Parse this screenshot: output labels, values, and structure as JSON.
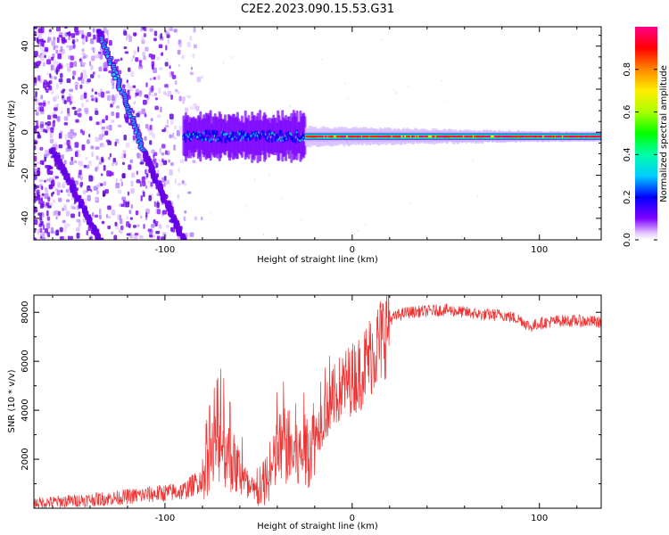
{
  "title": "C2E2.2023.090.15.53.G31",
  "chart_data": [
    {
      "type": "heatmap",
      "xlabel": "Height of straight line (km)",
      "ylabel": "Frequency (Hz)",
      "xlim": [
        -170,
        133
      ],
      "ylim": [
        -50,
        49
      ],
      "xticks": [
        -100,
        0,
        100
      ],
      "yticks": [
        -40,
        -20,
        0,
        20,
        40
      ],
      "colorbar": {
        "label": "Normalized spectral amplitude",
        "range": [
          0,
          1
        ],
        "ticks": [
          0.0,
          0.2,
          0.4,
          0.6,
          0.8
        ]
      },
      "features": [
        {
          "name": "descending-line-1",
          "from": [
            -135,
            47
          ],
          "to": [
            -110,
            -12
          ]
        },
        {
          "name": "descending-line-2",
          "from": [
            -110,
            -12
          ],
          "to": [
            -90,
            -50
          ]
        },
        {
          "name": "descending-line-3",
          "from": [
            -160,
            -8
          ],
          "to": [
            -135,
            -50
          ]
        },
        {
          "name": "central-band",
          "x_range": [
            -90,
            133
          ],
          "center_freq": -2
        }
      ]
    },
    {
      "type": "line",
      "xlabel": "Height of straight line (km)",
      "ylabel": "SNR (10 * v/v)",
      "xlim": [
        -170,
        133
      ],
      "ylim": [
        0,
        8700
      ],
      "xticks": [
        -100,
        0,
        100
      ],
      "yticks": [
        2000,
        4000,
        6000,
        8000
      ],
      "color": "#ee3333",
      "series": [
        {
          "name": "SNR",
          "x": [
            -170,
            -150,
            -130,
            -110,
            -90,
            -80,
            -75,
            -70,
            -65,
            -60,
            -55,
            -50,
            -45,
            -40,
            -35,
            -30,
            -25,
            -20,
            -15,
            -10,
            -5,
            0,
            5,
            10,
            15,
            20,
            25,
            30,
            40,
            50,
            60,
            70,
            80,
            90,
            95,
            100,
            110,
            120,
            133
          ],
          "y": [
            200,
            300,
            400,
            550,
            700,
            1200,
            2200,
            2800,
            2000,
            1500,
            700,
            600,
            900,
            2300,
            2600,
            2000,
            2300,
            2900,
            3800,
            4500,
            5000,
            5300,
            5600,
            6300,
            6800,
            7700,
            7900,
            8000,
            8050,
            8100,
            8000,
            7900,
            7900,
            7700,
            7400,
            7550,
            7650,
            7650,
            7600
          ]
        }
      ]
    }
  ]
}
